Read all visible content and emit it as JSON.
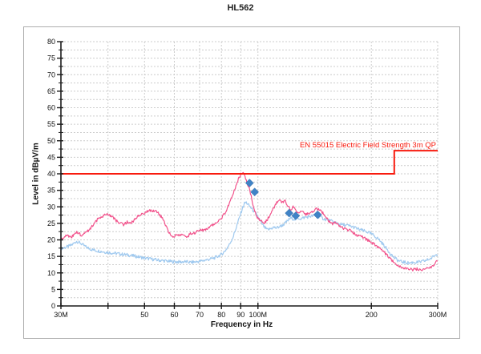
{
  "page": {
    "title": "HL562"
  },
  "chart_data": {
    "type": "line",
    "title": "HL562",
    "xlabel": "Frequency in Hz",
    "ylabel": "Level in dBµV/m",
    "x_scale": "log",
    "x_range_mhz": [
      30,
      300
    ],
    "ylim": [
      0,
      80
    ],
    "y_major_step": 5,
    "y_minor_step": 2.5,
    "grid": true,
    "grid_color": "#cccccc",
    "axis_color": "#1a1a1a",
    "x_ticks": [
      {
        "mhz": 30,
        "label": "30M"
      },
      {
        "mhz": 40,
        "label": ""
      },
      {
        "mhz": 50,
        "label": "50"
      },
      {
        "mhz": 60,
        "label": "60"
      },
      {
        "mhz": 70,
        "label": "70"
      },
      {
        "mhz": 80,
        "label": "80"
      },
      {
        "mhz": 90,
        "label": "90"
      },
      {
        "mhz": 100,
        "label": "100M"
      },
      {
        "mhz": 200,
        "label": "200"
      },
      {
        "mhz": 300,
        "label": "300M"
      }
    ],
    "limit_line": {
      "label": "EN 55015 Electric Field Strength 3m QP",
      "color": "#f81b0e",
      "points_mhz_db": [
        [
          30,
          40
        ],
        [
          230,
          40
        ],
        [
          230,
          47
        ],
        [
          300,
          47
        ]
      ]
    },
    "series": [
      {
        "name": "trace-blue",
        "color": "#9fc9ef",
        "noise_db": 0.5,
        "points_mhz_db": [
          [
            30,
            17.4
          ],
          [
            31,
            17.8
          ],
          [
            32,
            18.4
          ],
          [
            33,
            19.6
          ],
          [
            34,
            18.8
          ],
          [
            35,
            17.8
          ],
          [
            36,
            17.2
          ],
          [
            37,
            16.8
          ],
          [
            38,
            16.6
          ],
          [
            40,
            16.2
          ],
          [
            42,
            15.9
          ],
          [
            44,
            15.6
          ],
          [
            46,
            15.3
          ],
          [
            48,
            14.9
          ],
          [
            50,
            14.5
          ],
          [
            52,
            14.2
          ],
          [
            54,
            13.9
          ],
          [
            56,
            13.7
          ],
          [
            58,
            13.5
          ],
          [
            60,
            13.4
          ],
          [
            62,
            13.3
          ],
          [
            64,
            13.4
          ],
          [
            66,
            13.2
          ],
          [
            68,
            13.3
          ],
          [
            70,
            13.5
          ],
          [
            72,
            13.8
          ],
          [
            74,
            14.1
          ],
          [
            76,
            14.4
          ],
          [
            78,
            14.9
          ],
          [
            80,
            15.6
          ],
          [
            82,
            16.8
          ],
          [
            84,
            18.6
          ],
          [
            86,
            21.0
          ],
          [
            88,
            24.5
          ],
          [
            90,
            28.0
          ],
          [
            91,
            29.6
          ],
          [
            92,
            31.0
          ],
          [
            93,
            31.4
          ],
          [
            94,
            30.8
          ],
          [
            95,
            30.2
          ],
          [
            96,
            29.6
          ],
          [
            98,
            28.4
          ],
          [
            100,
            27.0
          ],
          [
            102,
            25.2
          ],
          [
            104,
            23.8
          ],
          [
            106,
            23.0
          ],
          [
            108,
            23.4
          ],
          [
            110,
            23.8
          ],
          [
            112,
            23.6
          ],
          [
            114,
            24.0
          ],
          [
            116,
            24.4
          ],
          [
            118,
            25.0
          ],
          [
            120,
            25.8
          ],
          [
            122,
            26.6
          ],
          [
            124,
            26.4
          ],
          [
            126,
            26.2
          ],
          [
            128,
            26.6
          ],
          [
            130,
            26.4
          ],
          [
            133,
            26.8
          ],
          [
            136,
            27.0
          ],
          [
            139,
            27.2
          ],
          [
            142,
            27.4
          ],
          [
            145,
            27.0
          ],
          [
            148,
            26.6
          ],
          [
            151,
            26.2
          ],
          [
            155,
            25.8
          ],
          [
            159,
            25.4
          ],
          [
            163,
            25.0
          ],
          [
            167,
            24.6
          ],
          [
            171,
            24.4
          ],
          [
            175,
            24.2
          ],
          [
            180,
            23.8
          ],
          [
            185,
            23.2
          ],
          [
            190,
            22.8
          ],
          [
            195,
            22.4
          ],
          [
            200,
            21.8
          ],
          [
            205,
            21.0
          ],
          [
            210,
            20.0
          ],
          [
            215,
            18.6
          ],
          [
            220,
            17.2
          ],
          [
            225,
            15.8
          ],
          [
            230,
            14.6
          ],
          [
            235,
            13.8
          ],
          [
            240,
            13.4
          ],
          [
            246,
            13.2
          ],
          [
            252,
            13.0
          ],
          [
            258,
            13.2
          ],
          [
            265,
            13.2
          ],
          [
            272,
            13.4
          ],
          [
            280,
            13.8
          ],
          [
            288,
            14.4
          ],
          [
            294,
            15.2
          ],
          [
            300,
            15.8
          ]
        ]
      },
      {
        "name": "trace-pink",
        "color": "#f2538c",
        "noise_db": 0.4,
        "points_mhz_db": [
          [
            30,
            20.0
          ],
          [
            31,
            21.3
          ],
          [
            32,
            20.8
          ],
          [
            33,
            22.4
          ],
          [
            34,
            21.4
          ],
          [
            35,
            22.2
          ],
          [
            36,
            23.6
          ],
          [
            37,
            25.4
          ],
          [
            38,
            26.8
          ],
          [
            39,
            27.4
          ],
          [
            40,
            27.7
          ],
          [
            41,
            27.1
          ],
          [
            42,
            25.8
          ],
          [
            43,
            25.1
          ],
          [
            44,
            24.6
          ],
          [
            45,
            25.4
          ],
          [
            46,
            25.0
          ],
          [
            47,
            26.1
          ],
          [
            48,
            27.2
          ],
          [
            50,
            28.2
          ],
          [
            52,
            29.0
          ],
          [
            54,
            28.6
          ],
          [
            55,
            27.4
          ],
          [
            56,
            26.2
          ],
          [
            57,
            24.2
          ],
          [
            58,
            22.2
          ],
          [
            59,
            21.3
          ],
          [
            60,
            21.0
          ],
          [
            61,
            21.7
          ],
          [
            62,
            21.2
          ],
          [
            63,
            22.0
          ],
          [
            64,
            21.4
          ],
          [
            65,
            21.0
          ],
          [
            66,
            21.7
          ],
          [
            67,
            22.2
          ],
          [
            68,
            22.0
          ],
          [
            70,
            23.2
          ],
          [
            72,
            22.8
          ],
          [
            74,
            23.6
          ],
          [
            76,
            24.6
          ],
          [
            78,
            25.4
          ],
          [
            80,
            26.6
          ],
          [
            82,
            28.4
          ],
          [
            84,
            31.0
          ],
          [
            86,
            34.0
          ],
          [
            88,
            37.5
          ],
          [
            90,
            39.8
          ],
          [
            91,
            40.4
          ],
          [
            92,
            39.6
          ],
          [
            93,
            38.2
          ],
          [
            94,
            36.6
          ],
          [
            95,
            35.2
          ],
          [
            96,
            33.0
          ],
          [
            97,
            30.8
          ],
          [
            98,
            28.8
          ],
          [
            99,
            27.4
          ],
          [
            100,
            26.6
          ],
          [
            102,
            25.6
          ],
          [
            104,
            25.2
          ],
          [
            106,
            26.2
          ],
          [
            108,
            27.8
          ],
          [
            110,
            29.6
          ],
          [
            112,
            31.2
          ],
          [
            114,
            32.2
          ],
          [
            116,
            31.4
          ],
          [
            118,
            31.8
          ],
          [
            120,
            30.4
          ],
          [
            122,
            28.8
          ],
          [
            124,
            30.0
          ],
          [
            126,
            29.2
          ],
          [
            128,
            28.2
          ],
          [
            130,
            28.6
          ],
          [
            132,
            28.2
          ],
          [
            134,
            27.8
          ],
          [
            137,
            28.2
          ],
          [
            140,
            28.6
          ],
          [
            143,
            29.4
          ],
          [
            146,
            29.0
          ],
          [
            149,
            28.0
          ],
          [
            152,
            26.6
          ],
          [
            155,
            25.4
          ],
          [
            158,
            24.8
          ],
          [
            161,
            25.2
          ],
          [
            164,
            24.2
          ],
          [
            168,
            23.6
          ],
          [
            172,
            23.2
          ],
          [
            176,
            22.8
          ],
          [
            180,
            22.0
          ],
          [
            185,
            21.2
          ],
          [
            190,
            20.8
          ],
          [
            195,
            20.0
          ],
          [
            200,
            19.2
          ],
          [
            205,
            18.4
          ],
          [
            210,
            17.6
          ],
          [
            215,
            16.6
          ],
          [
            220,
            15.4
          ],
          [
            225,
            14.2
          ],
          [
            230,
            13.2
          ],
          [
            235,
            12.4
          ],
          [
            240,
            11.8
          ],
          [
            246,
            11.4
          ],
          [
            252,
            11.2
          ],
          [
            258,
            11.0
          ],
          [
            265,
            11.2
          ],
          [
            272,
            11.0
          ],
          [
            280,
            11.4
          ],
          [
            288,
            11.8
          ],
          [
            294,
            12.6
          ],
          [
            300,
            13.8
          ]
        ]
      }
    ],
    "final_measurements": {
      "name": "qp-final-measurements",
      "marker": "diamond",
      "color": "#4083c6",
      "points_mhz_db": [
        [
          95,
          37.2
        ],
        [
          98,
          34.5
        ],
        [
          121,
          28.1
        ],
        [
          126,
          27.3
        ],
        [
          144,
          27.6
        ]
      ]
    }
  }
}
